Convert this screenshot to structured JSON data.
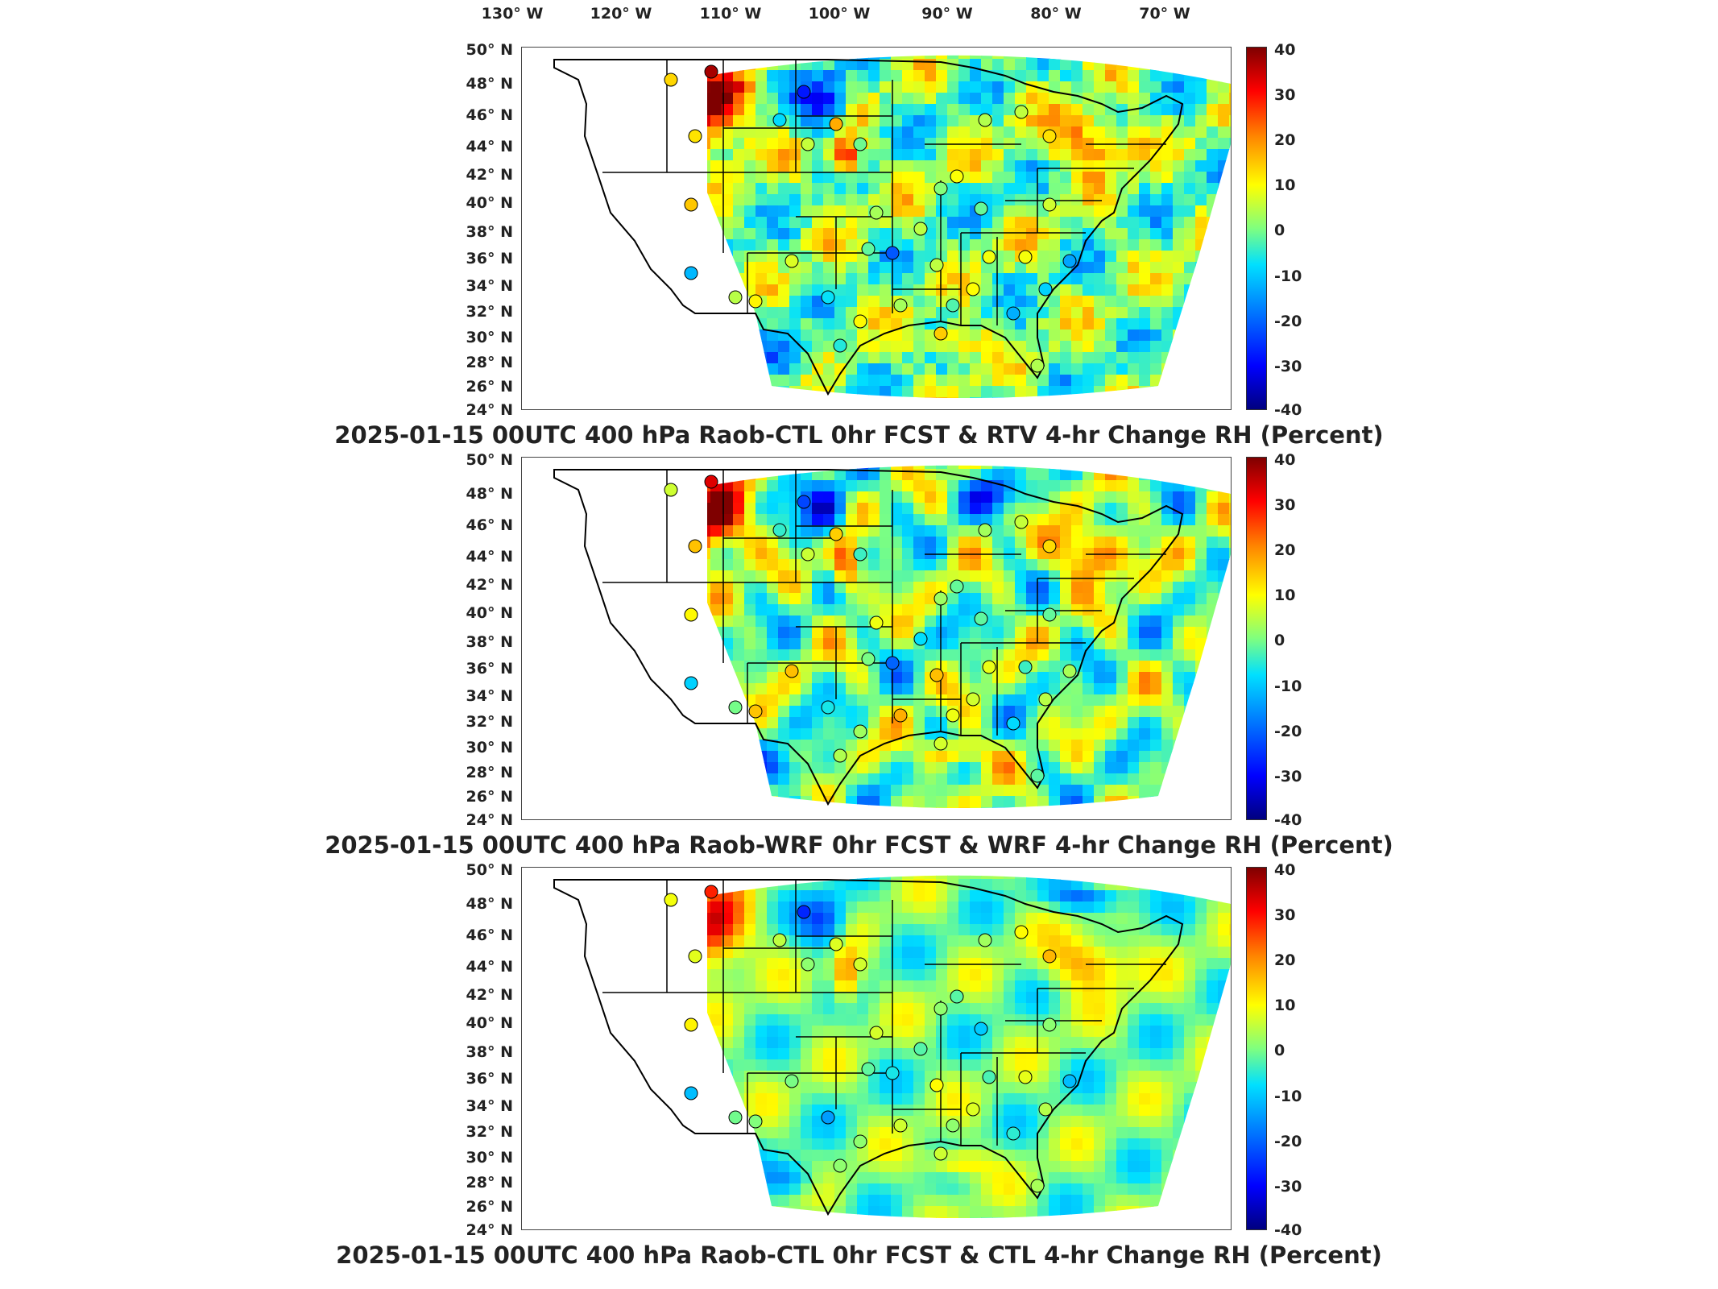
{
  "longitude_labels": [
    "130° W",
    "120° W",
    "110° W",
    "100° W",
    "90° W",
    "80° W",
    "70° W"
  ],
  "latitude_labels": [
    "50° N",
    "48° N",
    "46° N",
    "44° N",
    "42° N",
    "40° N",
    "38° N",
    "36° N",
    "34° N",
    "32° N",
    "30° N",
    "28° N",
    "26° N",
    "24° N"
  ],
  "colorbar_ticks": [
    "40",
    "30",
    "20",
    "10",
    "0",
    "-10",
    "-20",
    "-30",
    "-40"
  ],
  "colorbar_range": [
    -40,
    40
  ],
  "colormap": "jet",
  "panels": [
    {
      "title": "2025-01-15 00UTC 400 hPa Raob-CTL 0hr FCST & RTV 4-hr Change RH (Percent)",
      "pattern": "rtv"
    },
    {
      "title": "2025-01-15 00UTC 400 hPa Raob-WRF 0hr FCST & WRF 4-hr Change RH (Percent)",
      "pattern": "wrf"
    },
    {
      "title": "2025-01-15 00UTC 400 hPa Raob-CTL 0hr FCST & CTL 4-hr Change RH (Percent)",
      "pattern": "ctl"
    }
  ],
  "colors": {
    "map_outline": "#000000",
    "station_outline": "#000000"
  }
}
